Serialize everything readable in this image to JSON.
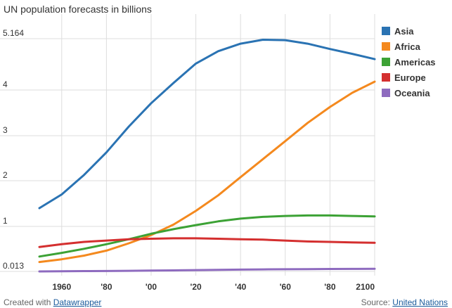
{
  "chart_data": {
    "type": "line",
    "title": "UN population forecasts in billions",
    "xlabel": "",
    "ylabel": "",
    "x": [
      1950,
      1960,
      1970,
      1980,
      1990,
      2000,
      2010,
      2020,
      2030,
      2040,
      2050,
      2060,
      2070,
      2080,
      2090,
      2100
    ],
    "x_tick_values": [
      1960,
      1980,
      2000,
      2020,
      2040,
      2060,
      2080,
      2100
    ],
    "x_tick_labels": [
      "1960",
      "'80",
      "'00",
      "'20",
      "'40",
      "'60",
      "'80",
      "2100"
    ],
    "y_tick_values": [
      0.013,
      1,
      2,
      3,
      4,
      5.164
    ],
    "y_tick_labels": [
      "0.013",
      "1",
      "2",
      "3",
      "4",
      "5.164"
    ],
    "ylim": [
      0.013,
      5.164
    ],
    "xlim": [
      1950,
      2100
    ],
    "grid": true,
    "legend_position": "right",
    "series": [
      {
        "name": "Asia",
        "color": "#2a73b3",
        "values": [
          1.4,
          1.7,
          2.13,
          2.63,
          3.2,
          3.71,
          4.16,
          4.6,
          4.88,
          5.05,
          5.14,
          5.13,
          5.05,
          4.93,
          4.82,
          4.7
        ]
      },
      {
        "name": "Africa",
        "color": "#f4891e",
        "values": [
          0.22,
          0.28,
          0.36,
          0.47,
          0.63,
          0.81,
          1.04,
          1.34,
          1.68,
          2.08,
          2.48,
          2.88,
          3.28,
          3.63,
          3.94,
          4.19
        ]
      },
      {
        "name": "Americas",
        "color": "#3ca235",
        "values": [
          0.34,
          0.42,
          0.51,
          0.61,
          0.72,
          0.84,
          0.94,
          1.03,
          1.11,
          1.17,
          1.21,
          1.23,
          1.24,
          1.24,
          1.23,
          1.22
        ]
      },
      {
        "name": "Europe",
        "color": "#d42f2f",
        "values": [
          0.55,
          0.61,
          0.66,
          0.69,
          0.72,
          0.73,
          0.74,
          0.74,
          0.73,
          0.72,
          0.71,
          0.69,
          0.67,
          0.66,
          0.65,
          0.64
        ]
      },
      {
        "name": "Oceania",
        "color": "#8e6bbf",
        "values": [
          0.013,
          0.016,
          0.02,
          0.023,
          0.027,
          0.031,
          0.036,
          0.042,
          0.048,
          0.053,
          0.057,
          0.061,
          0.064,
          0.067,
          0.069,
          0.071
        ]
      }
    ]
  },
  "footer": {
    "created_prefix": "Created with",
    "created_link": "Datawrapper",
    "source_prefix": "Source:",
    "source_link": "United Nations"
  }
}
